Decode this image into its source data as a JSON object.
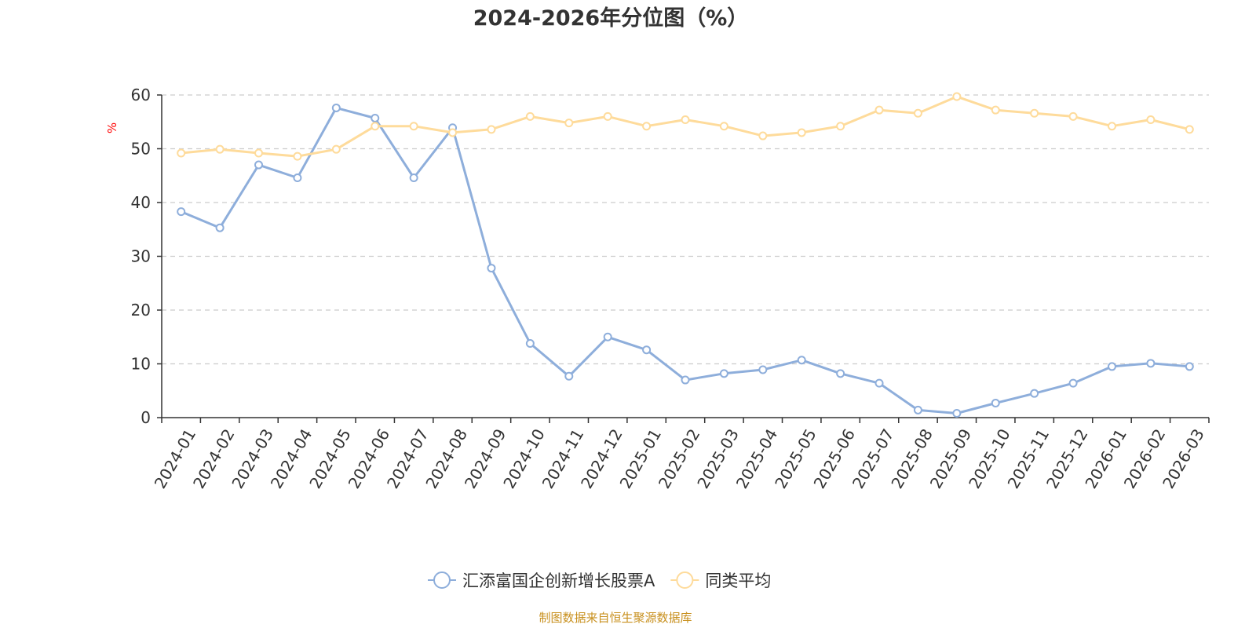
{
  "chart_data": {
    "type": "line",
    "title": "2024-2026年分位图（%）",
    "ylabel": "%",
    "xlabel": "",
    "ylim": [
      0,
      60
    ],
    "yticks": [
      0,
      10,
      20,
      30,
      40,
      50,
      60
    ],
    "grid": true,
    "legend_position": "bottom-center",
    "categories": [
      "2024-01",
      "2024-02",
      "2024-03",
      "2024-04",
      "2024-05",
      "2024-06",
      "2024-07",
      "2024-08",
      "2024-09",
      "2024-10",
      "2024-11",
      "2024-12",
      "2025-01",
      "2025-02",
      "2025-03",
      "2025-04",
      "2025-05",
      "2025-06",
      "2025-07",
      "2025-08",
      "2025-09",
      "2025-10",
      "2025-11",
      "2025-12",
      "2026-01",
      "2026-02",
      "2026-03"
    ],
    "series": [
      {
        "name": "汇添富国企创新增长股票A",
        "color": "#8eaedb",
        "values": [
          38.3,
          35.3,
          47.0,
          44.6,
          57.6,
          55.7,
          44.6,
          53.9,
          27.8,
          13.8,
          7.7,
          15.0,
          12.6,
          7.0,
          8.2,
          8.9,
          10.7,
          8.2,
          6.4,
          1.4,
          0.8,
          2.7,
          4.5,
          6.4,
          9.5,
          10.1,
          9.5
        ]
      },
      {
        "name": "同类平均",
        "color": "#fedb9b",
        "values": [
          49.2,
          49.9,
          49.2,
          48.6,
          49.9,
          54.2,
          54.2,
          53.0,
          53.6,
          56.0,
          54.8,
          56.0,
          54.2,
          55.4,
          54.2,
          52.4,
          53.0,
          54.2,
          57.2,
          56.6,
          59.7,
          57.2,
          56.6,
          56.0,
          54.2,
          55.4,
          53.6
        ]
      }
    ]
  },
  "source_text": "制图数据来自恒生聚源数据库",
  "colors": {
    "axis": "#333333",
    "grid": "#cccccc",
    "unit": "#ff0000",
    "source": "#c8901e"
  }
}
